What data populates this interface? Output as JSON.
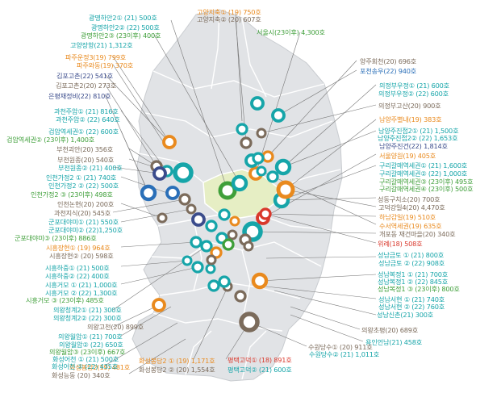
{
  "colors": {
    "region": "#e1e3e6",
    "region_edge": "#ffffff",
    "seoul": "#e6eec4",
    "blue": "#2a6fb8",
    "teal": "#16a5a9",
    "green": "#3f9f3a",
    "orange": "#e98a1e",
    "brown": "#7b6b5b",
    "red": "#d9382c",
    "navy": "#3b4c8c",
    "leader": "#777777"
  },
  "labels": [
    {
      "id": "l1",
      "text": "광명하안2① (21) 500호",
      "color": "teal"
    },
    {
      "id": "l2",
      "text": "광명하안2② (22) 500호",
      "color": "teal"
    },
    {
      "id": "l3",
      "text": "광명하안2③ (23이후) 400호",
      "color": "green"
    },
    {
      "id": "l4",
      "text": "고양지축① (19) 750호",
      "color": "orange"
    },
    {
      "id": "l5",
      "text": "고양지축② (20) 607호",
      "color": "brown"
    },
    {
      "id": "l6",
      "text": "서울시(23이후) 4,300호",
      "color": "green"
    },
    {
      "id": "l7",
      "text": "고양장항(21) 1,312호",
      "color": "teal"
    },
    {
      "id": "l8",
      "text": "파주운정3(19) 799호",
      "color": "orange"
    },
    {
      "id": "l9",
      "text": "파주와동(19) 370호",
      "color": "orange"
    },
    {
      "id": "l10",
      "text": "양주회천(20) 696호",
      "color": "brown"
    },
    {
      "id": "l11",
      "text": "포천송우(22) 940호",
      "color": "blue"
    },
    {
      "id": "l12",
      "text": "김포고촌(22) 541호",
      "color": "navy"
    },
    {
      "id": "l13",
      "text": "김포고촌2(20) 273호",
      "color": "brown"
    },
    {
      "id": "l14",
      "text": "의정부우정① (21) 600호",
      "color": "teal"
    },
    {
      "id": "l15",
      "text": "의정부우정② (22) 600호",
      "color": "teal"
    },
    {
      "id": "l16",
      "text": "은평재정비(22) 810호",
      "color": "navy"
    },
    {
      "id": "l17",
      "text": "의정부고산(20) 900호",
      "color": "brown"
    },
    {
      "id": "l18",
      "text": "과천주암① (21) 816호",
      "color": "teal"
    },
    {
      "id": "l19",
      "text": "과천주암② (22) 640호",
      "color": "teal"
    },
    {
      "id": "l20",
      "text": "남양주별내(19) 383호",
      "color": "orange"
    },
    {
      "id": "l21",
      "text": "검암역세권① (22) 600호",
      "color": "teal"
    },
    {
      "id": "l22",
      "text": "검암역세권② (23이후) 1,400호",
      "color": "green"
    },
    {
      "id": "l23",
      "text": "남양주진접2① (21) 1,500호",
      "color": "teal"
    },
    {
      "id": "l24",
      "text": "남양주진접2② (22) 1,653호",
      "color": "teal"
    },
    {
      "id": "l25",
      "text": "남양주진건(22) 1,814호",
      "color": "navy"
    },
    {
      "id": "l26",
      "text": "부천괴안(20) 356호",
      "color": "brown"
    },
    {
      "id": "l27",
      "text": "서울양원(19) 405호",
      "color": "orange"
    },
    {
      "id": "l28",
      "text": "부천원종(20) 540호",
      "color": "brown"
    },
    {
      "id": "l29",
      "text": "부천원종② (21) 400호",
      "color": "teal"
    },
    {
      "id": "l30",
      "text": "구리갈매역세권① (21) 1,600호",
      "color": "teal"
    },
    {
      "id": "l31",
      "text": "구리갈매역세권② (22) 1,000호",
      "color": "teal"
    },
    {
      "id": "l32",
      "text": "구리갈매역세권③ (23이후) 495호",
      "color": "green"
    },
    {
      "id": "l33",
      "text": "구리갈매역세권④ (23이후) 500호",
      "color": "green"
    },
    {
      "id": "l34",
      "text": "인천가정2 ① (21) 740호",
      "color": "teal"
    },
    {
      "id": "l35",
      "text": "인천가정2 ② (22) 500호",
      "color": "teal"
    },
    {
      "id": "l36",
      "text": "인천가정2 ③ (23이후) 498호",
      "color": "green"
    },
    {
      "id": "l37",
      "text": "성동구치소(20) 700호",
      "color": "brown"
    },
    {
      "id": "l38",
      "text": "인천논현(20) 200호",
      "color": "brown"
    },
    {
      "id": "l39",
      "text": "고덕강일4(20) 4,470호",
      "color": "brown"
    },
    {
      "id": "l40",
      "text": "과천지식(20) 545호",
      "color": "brown"
    },
    {
      "id": "l41",
      "text": "하남감일(19) 510호",
      "color": "orange"
    },
    {
      "id": "l42",
      "text": "수서역세권(19) 635호",
      "color": "orange"
    },
    {
      "id": "l43",
      "text": "군포대야미① (21) 550호",
      "color": "teal"
    },
    {
      "id": "l44",
      "text": "군포대야미② (22)1,250호",
      "color": "teal"
    },
    {
      "id": "l45",
      "text": "군포대야미③ (23이후) 886호",
      "color": "green"
    },
    {
      "id": "l46",
      "text": "개포동 재건마을(20) 340호",
      "color": "brown"
    },
    {
      "id": "l47",
      "text": "위례(18) 508호",
      "color": "red"
    },
    {
      "id": "l48",
      "text": "시흥장현① (19) 964호",
      "color": "orange"
    },
    {
      "id": "l49",
      "text": "시흥장현② (20) 598호",
      "color": "brown"
    },
    {
      "id": "l50",
      "text": "성남금토 ① (21) 800호",
      "color": "teal"
    },
    {
      "id": "l51",
      "text": "성남금토 ② (22) 908호",
      "color": "teal"
    },
    {
      "id": "l52",
      "text": "시흥하중① (21) 500호",
      "color": "teal"
    },
    {
      "id": "l53",
      "text": "시흥하중② (22) 400호",
      "color": "teal"
    },
    {
      "id": "l54",
      "text": "성남복정1 ① (21) 700호",
      "color": "teal"
    },
    {
      "id": "l55",
      "text": "성남복정1 ② (22) 845호",
      "color": "teal"
    },
    {
      "id": "l56",
      "text": "성남복정1 ③ (23이후) 800호",
      "color": "green"
    },
    {
      "id": "l57",
      "text": "시흥거모 ① (21) 1,000호",
      "color": "teal"
    },
    {
      "id": "l58",
      "text": "시흥거모 ② (22) 1,300호",
      "color": "teal"
    },
    {
      "id": "l59",
      "text": "시흥거모 ③ (23이후) 485호",
      "color": "green"
    },
    {
      "id": "l60",
      "text": "성남서현 ① (21) 740호",
      "color": "teal"
    },
    {
      "id": "l61",
      "text": "성남서현 ② (22) 760호",
      "color": "teal"
    },
    {
      "id": "l62",
      "text": "의왕청계2① (21) 300호",
      "color": "teal"
    },
    {
      "id": "l63",
      "text": "의왕청계2② (22) 300호",
      "color": "teal"
    },
    {
      "id": "l64",
      "text": "성남신촌(21) 300호",
      "color": "teal"
    },
    {
      "id": "l65",
      "text": "의왕고천(20) 899호",
      "color": "brown"
    },
    {
      "id": "l66",
      "text": "의왕초평(20) 689호",
      "color": "brown"
    },
    {
      "id": "l67",
      "text": "의왕월암① (21) 700호",
      "color": "teal"
    },
    {
      "id": "l68",
      "text": "의왕월암② (22) 650호",
      "color": "teal"
    },
    {
      "id": "l69",
      "text": "의왕월암③ (23이후) 667호",
      "color": "green"
    },
    {
      "id": "l70",
      "text": "용인언남(21) 458호",
      "color": "teal"
    },
    {
      "id": "l71",
      "text": "화성봉담2(19) 481호",
      "color": "orange"
    },
    {
      "id": "l72",
      "text": "수원당수① (20) 911호",
      "color": "brown"
    },
    {
      "id": "l73",
      "text": "수원당수② (21) 1,011호",
      "color": "teal"
    },
    {
      "id": "l74",
      "text": "화성어천 ① (21) 500호",
      "color": "teal"
    },
    {
      "id": "l75",
      "text": "화성어천 ② (22) 435호",
      "color": "teal"
    },
    {
      "id": "l76",
      "text": "화성봉담2 ① (19) 1,171호",
      "color": "orange"
    },
    {
      "id": "l77",
      "text": "화성봉담2 ② (20) 1,554호",
      "color": "brown"
    },
    {
      "id": "l78",
      "text": "평택고덕① (18) 891호",
      "color": "red"
    },
    {
      "id": "l79",
      "text": "평택고덕② (21) 600호",
      "color": "teal"
    },
    {
      "id": "l80",
      "text": "화성능동 (20) 340호",
      "color": "brown"
    }
  ],
  "sites": [
    {
      "color": "teal"
    },
    {
      "color": "orange"
    },
    {
      "color": "green"
    },
    {
      "color": "teal"
    },
    {
      "color": "orange"
    },
    {
      "color": "brown"
    },
    {
      "color": "blue"
    },
    {
      "color": "navy"
    },
    {
      "color": "brown"
    },
    {
      "color": "teal"
    },
    {
      "color": "brown"
    },
    {
      "color": "navy"
    },
    {
      "color": "teal"
    },
    {
      "color": "teal"
    },
    {
      "color": "orange"
    },
    {
      "color": "teal"
    },
    {
      "color": "brown"
    },
    {
      "color": "brown"
    },
    {
      "color": "teal"
    },
    {
      "color": "green"
    },
    {
      "color": "teal"
    },
    {
      "color": "orange"
    },
    {
      "color": "teal"
    },
    {
      "color": "teal"
    },
    {
      "color": "brown"
    },
    {
      "color": "teal"
    },
    {
      "color": "teal"
    },
    {
      "color": "brown"
    },
    {
      "color": "brown"
    },
    {
      "color": "orange"
    },
    {
      "color": "teal"
    },
    {
      "color": "red"
    },
    {
      "color": "teal"
    },
    {
      "color": "teal"
    },
    {
      "color": "teal"
    },
    {
      "color": "orange"
    },
    {
      "color": "teal"
    },
    {
      "color": "teal"
    },
    {
      "color": "brown"
    },
    {
      "color": "teal"
    },
    {
      "color": "teal"
    },
    {
      "color": "teal"
    },
    {
      "color": "orange"
    },
    {
      "color": "brown"
    },
    {
      "color": "teal"
    },
    {
      "color": "brown"
    },
    {
      "color": "orange"
    },
    {
      "color": "red"
    },
    {
      "color": "teal"
    },
    {
      "color": "navy"
    },
    {
      "color": "brown"
    },
    {
      "color": "teal"
    },
    {
      "color": "brown"
    },
    {
      "color": "blue"
    }
  ]
}
